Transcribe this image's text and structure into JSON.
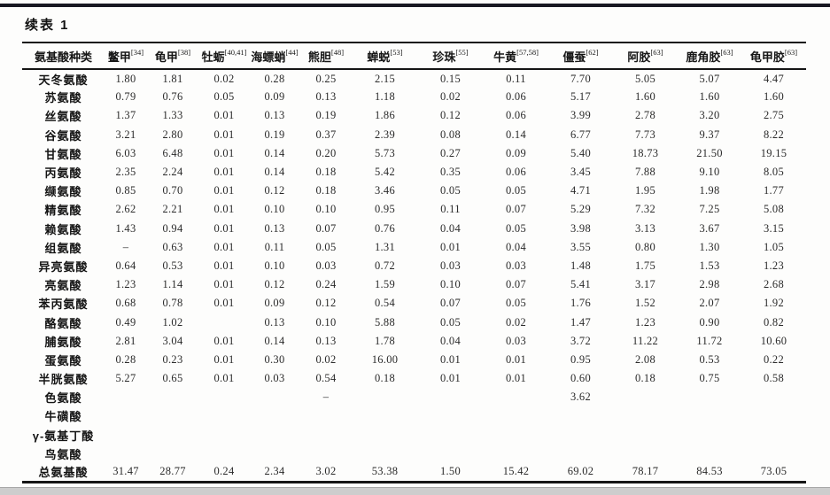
{
  "page": {
    "title": "续表 1"
  },
  "table": {
    "header": [
      {
        "label": "氨基酸种类",
        "sup": ""
      },
      {
        "label": "鳖甲",
        "sup": "[34]"
      },
      {
        "label": "龟甲",
        "sup": "[38]"
      },
      {
        "label": "牡蛎",
        "sup": "[40,41]"
      },
      {
        "label": "海螵蛸",
        "sup": "[44]"
      },
      {
        "label": "熊胆",
        "sup": "[48]"
      },
      {
        "label": "蝉蜕",
        "sup": "[53]"
      },
      {
        "label": "珍珠",
        "sup": "[55]"
      },
      {
        "label": "牛黄",
        "sup": "[57,58]"
      },
      {
        "label": "僵蚕",
        "sup": "[62]"
      },
      {
        "label": "阿胶",
        "sup": "[63]"
      },
      {
        "label": "鹿角胶",
        "sup": "[63]"
      },
      {
        "label": "龟甲胶",
        "sup": "[63]"
      }
    ],
    "rows": [
      {
        "label": "天冬氨酸",
        "values": [
          "1.80",
          "1.81",
          "0.02",
          "0.28",
          "0.25",
          "2.15",
          "0.15",
          "0.11",
          "7.70",
          "5.05",
          "5.07",
          "4.47"
        ]
      },
      {
        "label": "苏氨酸",
        "values": [
          "0.79",
          "0.76",
          "0.05",
          "0.09",
          "0.13",
          "1.18",
          "0.02",
          "0.06",
          "5.17",
          "1.60",
          "1.60",
          "1.60"
        ]
      },
      {
        "label": "丝氨酸",
        "values": [
          "1.37",
          "1.33",
          "0.01",
          "0.13",
          "0.19",
          "1.86",
          "0.12",
          "0.06",
          "3.99",
          "2.78",
          "3.20",
          "2.75"
        ]
      },
      {
        "label": "谷氨酸",
        "values": [
          "3.21",
          "2.80",
          "0.01",
          "0.19",
          "0.37",
          "2.39",
          "0.08",
          "0.14",
          "6.77",
          "7.73",
          "9.37",
          "8.22"
        ]
      },
      {
        "label": "甘氨酸",
        "values": [
          "6.03",
          "6.48",
          "0.01",
          "0.14",
          "0.20",
          "5.73",
          "0.27",
          "0.09",
          "5.40",
          "18.73",
          "21.50",
          "19.15"
        ]
      },
      {
        "label": "丙氨酸",
        "values": [
          "2.35",
          "2.24",
          "0.01",
          "0.14",
          "0.18",
          "5.42",
          "0.35",
          "0.06",
          "3.45",
          "7.88",
          "9.10",
          "8.05"
        ]
      },
      {
        "label": "缬氨酸",
        "values": [
          "0.85",
          "0.70",
          "0.01",
          "0.12",
          "0.18",
          "3.46",
          "0.05",
          "0.05",
          "4.71",
          "1.95",
          "1.98",
          "1.77"
        ]
      },
      {
        "label": "精氨酸",
        "values": [
          "2.62",
          "2.21",
          "0.01",
          "0.10",
          "0.10",
          "0.95",
          "0.11",
          "0.07",
          "5.29",
          "7.32",
          "7.25",
          "5.08"
        ]
      },
      {
        "label": "赖氨酸",
        "values": [
          "1.43",
          "0.94",
          "0.01",
          "0.13",
          "0.07",
          "0.76",
          "0.04",
          "0.05",
          "3.98",
          "3.13",
          "3.67",
          "3.15"
        ]
      },
      {
        "label": "组氨酸",
        "values": [
          "–",
          "0.63",
          "0.01",
          "0.11",
          "0.05",
          "1.31",
          "0.01",
          "0.04",
          "3.55",
          "0.80",
          "1.30",
          "1.05"
        ]
      },
      {
        "label": "异亮氨酸",
        "values": [
          "0.64",
          "0.53",
          "0.01",
          "0.10",
          "0.03",
          "0.72",
          "0.03",
          "0.03",
          "1.48",
          "1.75",
          "1.53",
          "1.23"
        ]
      },
      {
        "label": "亮氨酸",
        "values": [
          "1.23",
          "1.14",
          "0.01",
          "0.12",
          "0.24",
          "1.59",
          "0.10",
          "0.07",
          "5.41",
          "3.17",
          "2.98",
          "2.68"
        ]
      },
      {
        "label": "苯丙氨酸",
        "values": [
          "0.68",
          "0.78",
          "0.01",
          "0.09",
          "0.12",
          "0.54",
          "0.07",
          "0.05",
          "1.76",
          "1.52",
          "2.07",
          "1.92"
        ]
      },
      {
        "label": "酪氨酸",
        "values": [
          "0.49",
          "1.02",
          "",
          "0.13",
          "0.10",
          "5.88",
          "0.05",
          "0.02",
          "1.47",
          "1.23",
          "0.90",
          "0.82"
        ]
      },
      {
        "label": "脯氨酸",
        "values": [
          "2.81",
          "3.04",
          "0.01",
          "0.14",
          "0.13",
          "1.78",
          "0.04",
          "0.03",
          "3.72",
          "11.22",
          "11.72",
          "10.60"
        ]
      },
      {
        "label": "蛋氨酸",
        "values": [
          "0.28",
          "0.23",
          "0.01",
          "0.30",
          "0.02",
          "16.00",
          "0.01",
          "0.01",
          "0.95",
          "2.08",
          "0.53",
          "0.22"
        ]
      },
      {
        "label": "半胱氨酸",
        "values": [
          "5.27",
          "0.65",
          "0.01",
          "0.03",
          "0.54",
          "0.18",
          "0.01",
          "0.01",
          "0.60",
          "0.18",
          "0.75",
          "0.58"
        ]
      },
      {
        "label": "色氨酸",
        "values": [
          "",
          "",
          "",
          "",
          "–",
          "",
          "",
          "",
          "3.62",
          "",
          "",
          ""
        ]
      },
      {
        "label": "牛磺酸",
        "values": [
          "",
          "",
          "",
          "",
          "",
          "",
          "",
          "",
          "",
          "",
          "",
          ""
        ]
      },
      {
        "label": "γ-氨基丁酸",
        "values": [
          "",
          "",
          "",
          "",
          "",
          "",
          "",
          "",
          "",
          "",
          "",
          ""
        ]
      },
      {
        "label": "鸟氨酸",
        "values": [
          "",
          "",
          "",
          "",
          "",
          "",
          "",
          "",
          "",
          "",
          "",
          ""
        ]
      },
      {
        "label": "总氨基酸",
        "values": [
          "31.47",
          "28.77",
          "0.24",
          "2.34",
          "3.02",
          "53.38",
          "1.50",
          "15.42",
          "69.02",
          "78.17",
          "84.53",
          "73.05"
        ]
      }
    ]
  }
}
